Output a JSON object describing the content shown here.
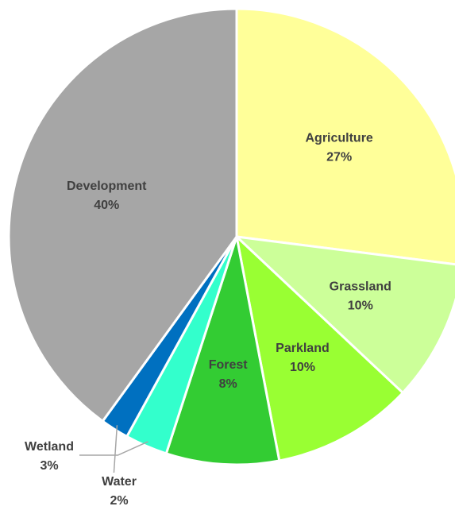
{
  "chart_data": {
    "type": "pie",
    "categories": [
      "Agriculture",
      "Grassland",
      "Parkland",
      "Forest",
      "Wetland",
      "Water",
      "Development"
    ],
    "values": [
      27,
      10,
      10,
      8,
      3,
      2,
      40
    ],
    "value_labels": [
      "27%",
      "10%",
      "10%",
      "8%",
      "3%",
      "2%",
      "40%"
    ],
    "colors": [
      "#ffff99",
      "#ccff99",
      "#99ff33",
      "#33cc33",
      "#33ffcc",
      "#0070c0",
      "#a6a6a6"
    ]
  }
}
